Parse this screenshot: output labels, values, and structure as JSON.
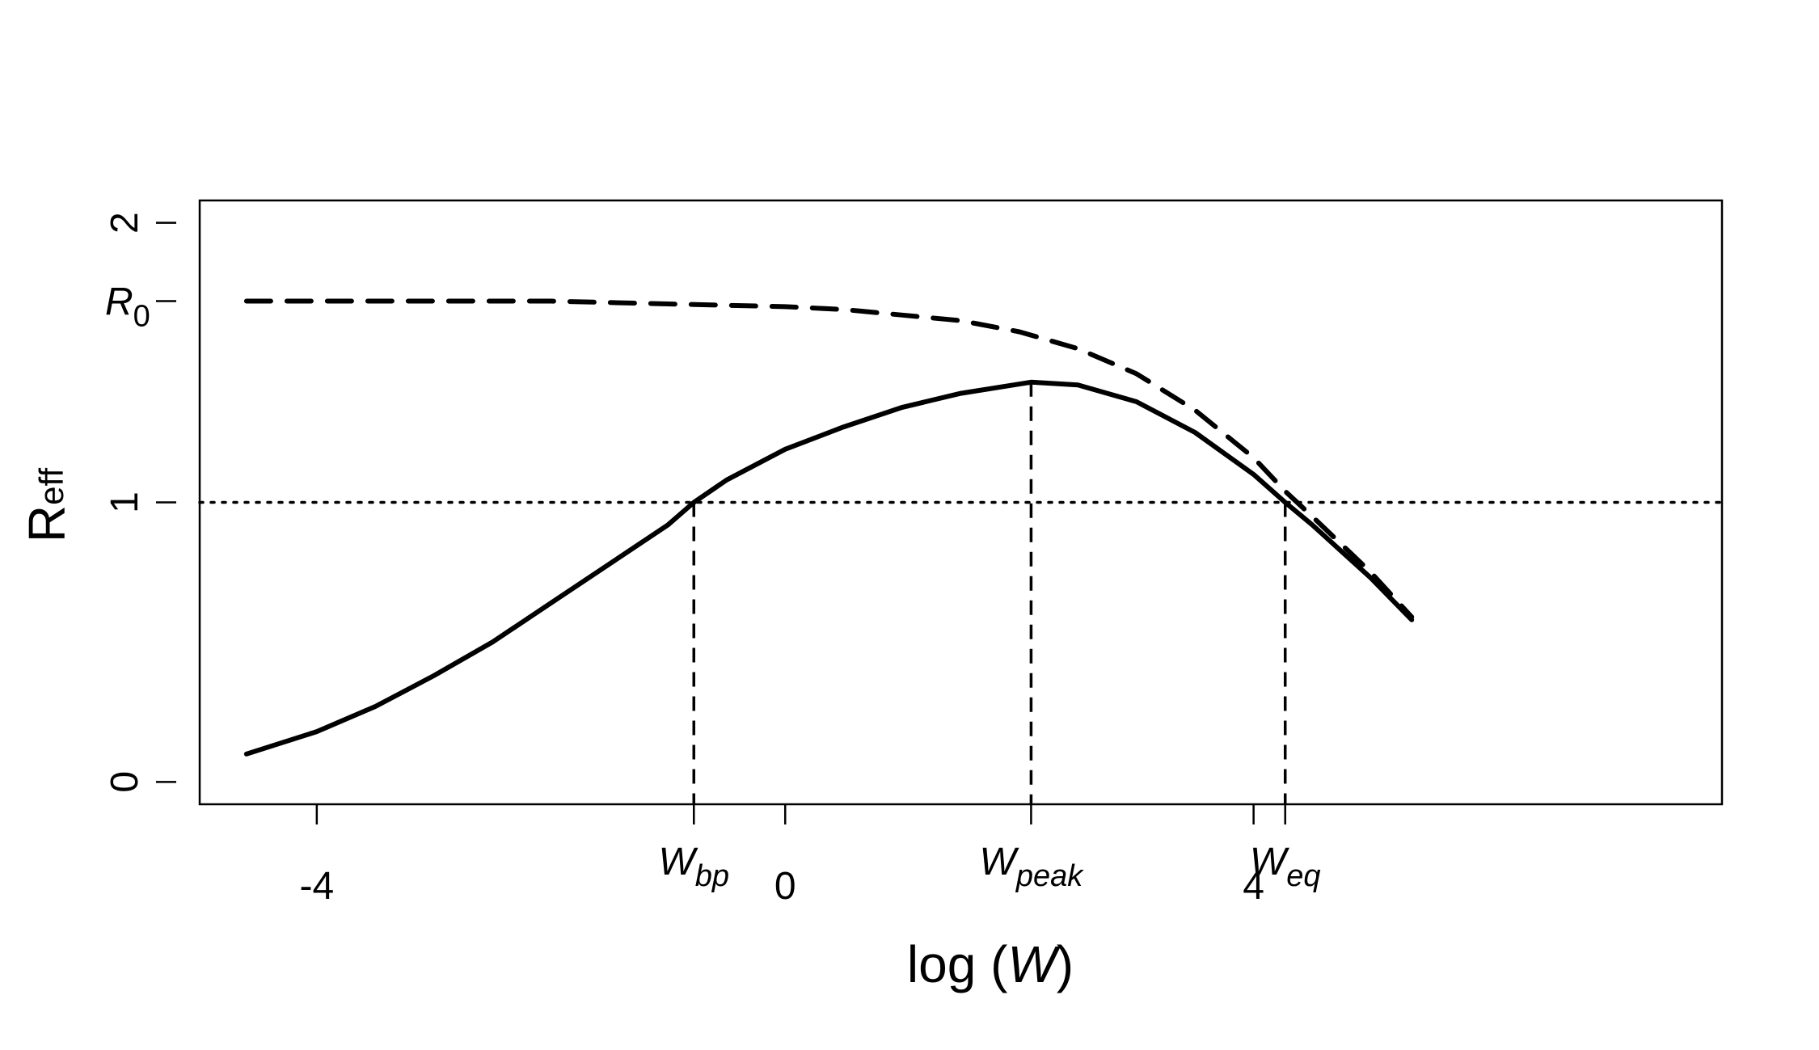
{
  "chart_data": {
    "type": "line",
    "xlabel": {
      "prefix": "log (",
      "var": "W",
      "suffix": ")"
    },
    "ylabel": {
      "main": "R",
      "sub": "eff"
    },
    "xlim": [
      -5,
      8
    ],
    "ylim": [
      -0.08,
      2.08
    ],
    "x_ticks": [
      {
        "value": -4,
        "label": "-4"
      },
      {
        "value": 0,
        "label": "0"
      },
      {
        "value": 4,
        "label": "4"
      }
    ],
    "y_ticks": [
      {
        "value": 0,
        "label": "0"
      },
      {
        "value": 1,
        "label": "1"
      },
      {
        "value": 2,
        "label": "2"
      }
    ],
    "special_x_labels": [
      {
        "value": -0.78,
        "main": "W",
        "sub": "bp"
      },
      {
        "value": 2.1,
        "main": "W",
        "sub": "peak"
      },
      {
        "value": 4.27,
        "main": "W",
        "sub": "eq"
      }
    ],
    "special_y_label": {
      "value": 1.72,
      "main": "R",
      "sub": "0"
    },
    "reference_line": {
      "y": 1,
      "style": "dotted"
    },
    "series": [
      {
        "style": "solid",
        "x": [
          -4.6,
          -4.0,
          -3.5,
          -3.0,
          -2.5,
          -2.0,
          -1.5,
          -1.0,
          -0.78,
          -0.5,
          0.0,
          0.5,
          1.0,
          1.5,
          2.1,
          2.5,
          3.0,
          3.5,
          4.0,
          4.27,
          4.5,
          5.0,
          5.35
        ],
        "y": [
          0.1,
          0.18,
          0.27,
          0.38,
          0.5,
          0.64,
          0.78,
          0.92,
          1.0,
          1.08,
          1.19,
          1.27,
          1.34,
          1.39,
          1.43,
          1.42,
          1.36,
          1.25,
          1.1,
          1.0,
          0.92,
          0.73,
          0.58
        ]
      },
      {
        "style": "dashed",
        "x": [
          -4.6,
          -4.0,
          -3.0,
          -2.0,
          -1.0,
          0.0,
          0.5,
          1.0,
          1.5,
          2.0,
          2.5,
          3.0,
          3.5,
          4.0,
          4.27,
          4.5,
          5.0,
          5.35
        ],
        "y": [
          1.72,
          1.72,
          1.72,
          1.72,
          1.71,
          1.7,
          1.69,
          1.67,
          1.65,
          1.61,
          1.55,
          1.46,
          1.33,
          1.16,
          1.04,
          0.95,
          0.75,
          0.59
        ]
      }
    ],
    "drop_lines": [
      {
        "x": -0.78,
        "y": 1.0
      },
      {
        "x": 2.1,
        "y": 1.43
      },
      {
        "x": 4.27,
        "y": 1.0
      }
    ]
  }
}
